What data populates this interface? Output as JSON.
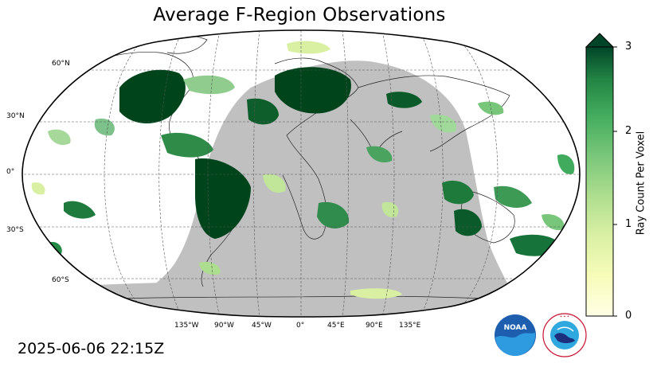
{
  "title": "Average F-Region Observations",
  "timestamp": "2025-06-06 22:15Z",
  "map": {
    "projection": "Robinson",
    "land_color": "#ffffff",
    "night_shade_color": "#c0c0c0",
    "gridline_style": "dashed",
    "lat_labels": [
      "60°N",
      "30°N",
      "0°",
      "30°S",
      "60°S"
    ],
    "lon_labels": [
      "135°W",
      "90°W",
      "45°W",
      "0°",
      "45°E",
      "90°E",
      "135°E"
    ]
  },
  "colorbar": {
    "label": "Ray Count Per Voxel",
    "ticks": [
      "0",
      "1",
      "2",
      "3"
    ],
    "min": 0,
    "max": 3,
    "extend": "max",
    "colormap": "Greens",
    "color_low": "#ffffe5",
    "color_high": "#004529"
  },
  "logos": {
    "noaa_text": "NOAA",
    "nws_text": "NATIONAL WEATHER SERVICE"
  }
}
